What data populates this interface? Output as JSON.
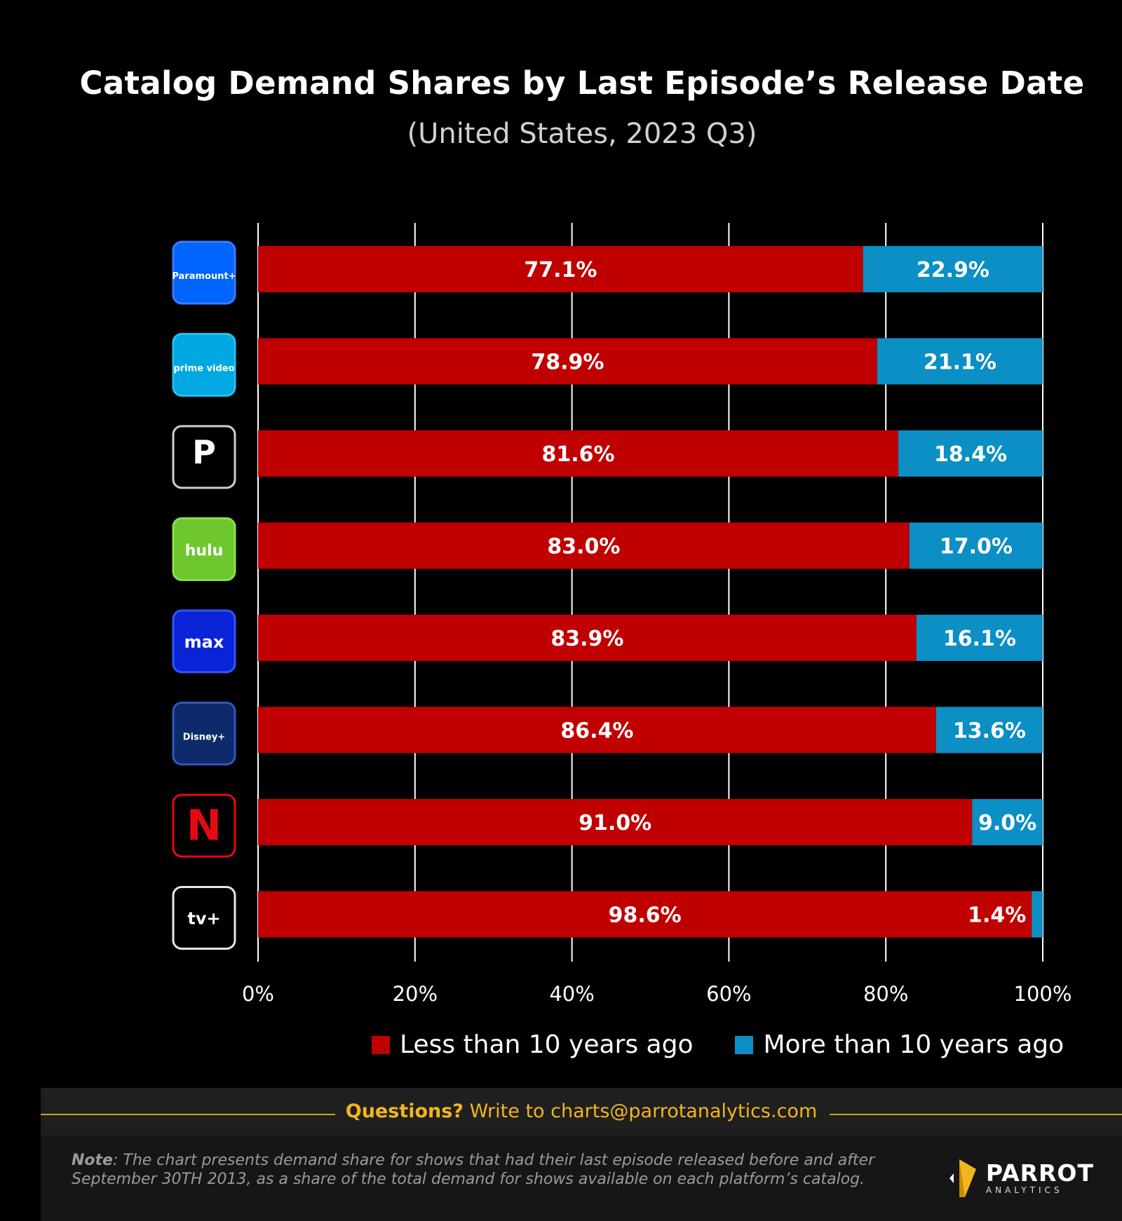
{
  "colors": {
    "less": "#c00000",
    "more": "#0b8fc4",
    "grid": "#ffffff"
  },
  "chart_data": {
    "type": "bar",
    "orientation": "horizontal",
    "stacked": true,
    "title": "Catalog Demand Shares by Last Episode’s Release Date",
    "subtitle": "(United States, 2023 Q3)",
    "categories": [
      "Paramount+",
      "Prime Video",
      "Peacock",
      "Hulu",
      "Max",
      "Disney+",
      "Netflix",
      "Apple TV+"
    ],
    "series": [
      {
        "name": "Less than 10 years ago",
        "color": "#c00000",
        "values": [
          77.1,
          78.9,
          81.6,
          83.0,
          83.9,
          86.4,
          91.0,
          98.6
        ],
        "labels": [
          "77.1%",
          "78.9%",
          "81.6%",
          "83.0%",
          "83.9%",
          "86.4%",
          "91.0%",
          "98.6%"
        ]
      },
      {
        "name": "More than 10 years ago",
        "color": "#0b8fc4",
        "values": [
          22.9,
          21.1,
          18.4,
          17.0,
          16.1,
          13.6,
          9.0,
          1.4
        ],
        "labels": [
          "22.9%",
          "21.1%",
          "18.4%",
          "17.0%",
          "16.1%",
          "13.6%",
          "9.0%",
          "1.4%"
        ]
      }
    ],
    "xlim": [
      0,
      100
    ],
    "xticks": [
      0,
      20,
      40,
      60,
      80,
      100
    ],
    "xtick_labels": [
      "0%",
      "20%",
      "40%",
      "60%",
      "80%",
      "100%"
    ],
    "grid": true,
    "legend": "bottom"
  },
  "logos": [
    {
      "service": "Paramount+",
      "text": "Paramount+",
      "icon": "paramount-logo-icon",
      "bg": "#0064ff",
      "border": "#3a7bff"
    },
    {
      "service": "Prime Video",
      "text": "prime video",
      "icon": "prime-video-logo-icon",
      "bg": "#00a8e1",
      "border": "#26c0f0"
    },
    {
      "service": "Peacock",
      "text": "P",
      "icon": "peacock-logo-icon",
      "bg": "#000000",
      "border": "#cfcfcf"
    },
    {
      "service": "Hulu",
      "text": "hulu",
      "icon": "hulu-logo-icon",
      "bg": "#6ec72f",
      "border": "#8be04a"
    },
    {
      "service": "Max",
      "text": "max",
      "icon": "max-logo-icon",
      "bg": "#0a24d8",
      "border": "#3355ff"
    },
    {
      "service": "Disney+",
      "text": "Disney+",
      "icon": "disney-plus-logo-icon",
      "bg": "#0e2a6b",
      "border": "#2f59c0"
    },
    {
      "service": "Netflix",
      "text": "N",
      "icon": "netflix-logo-icon",
      "bg": "#000000",
      "border": "#e50914"
    },
    {
      "service": "Apple TV+",
      "text": "tv+",
      "icon": "apple-tv-logo-icon",
      "bg": "#000000",
      "border": "#e6e6e6"
    }
  ],
  "footer": {
    "questions_label": "Questions?",
    "questions_text": "Write to charts@parrotanalytics.com",
    "note_label": "Note",
    "note_text": ": The chart presents demand share for shows that had their last episode released before and after September 30TH 2013, as a share of the total demand for shows available on each platform’s catalog.",
    "brand_name": "PARROT",
    "brand_sub": "ANALYTICS"
  }
}
